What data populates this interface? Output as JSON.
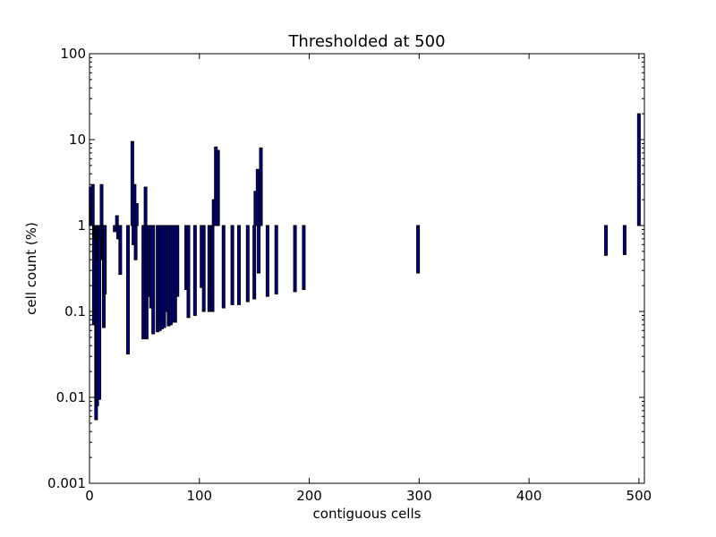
{
  "chart_data": {
    "type": "bar",
    "title": "Thresholded at 500",
    "xlabel": "contiguous cells",
    "ylabel": "cell count (%)",
    "xlim": [
      0,
      505
    ],
    "ylim": [
      0.001,
      100
    ],
    "yscale": "log",
    "baseline": 1,
    "bar_color": "#00008b",
    "edge_color": "#000000",
    "grid": false,
    "x_ticks": [
      0,
      100,
      200,
      300,
      400,
      500
    ],
    "x_tick_labels": [
      "0",
      "100",
      "200",
      "300",
      "400",
      "500"
    ],
    "y_ticks": [
      0.001,
      0.01,
      0.1,
      1,
      10,
      100
    ],
    "y_tick_labels": [
      "0.001",
      "0.01",
      "0.1",
      "1",
      "10",
      "100"
    ],
    "points": [
      {
        "x": 1,
        "y": 2.8
      },
      {
        "x": 2,
        "y": 1.8
      },
      {
        "x": 3,
        "y": 3.0
      },
      {
        "x": 4,
        "y": 0.07
      },
      {
        "x": 5,
        "y": 0.7
      },
      {
        "x": 6,
        "y": 0.0055
      },
      {
        "x": 7,
        "y": 0.008
      },
      {
        "x": 8,
        "y": 0.4
      },
      {
        "x": 9,
        "y": 0.0095
      },
      {
        "x": 10,
        "y": 0.7
      },
      {
        "x": 11,
        "y": 3.0
      },
      {
        "x": 12,
        "y": 0.4
      },
      {
        "x": 13,
        "y": 0.065
      },
      {
        "x": 14,
        "y": 0.16
      },
      {
        "x": 23,
        "y": 0.85
      },
      {
        "x": 25,
        "y": 1.3
      },
      {
        "x": 26,
        "y": 0.7
      },
      {
        "x": 28,
        "y": 0.27
      },
      {
        "x": 35,
        "y": 0.032
      },
      {
        "x": 39,
        "y": 9.5
      },
      {
        "x": 40,
        "y": 0.6
      },
      {
        "x": 41,
        "y": 3.0
      },
      {
        "x": 42,
        "y": 0.4
      },
      {
        "x": 43,
        "y": 1.8
      },
      {
        "x": 49,
        "y": 0.048
      },
      {
        "x": 51,
        "y": 2.8
      },
      {
        "x": 52,
        "y": 0.048
      },
      {
        "x": 54,
        "y": 0.15
      },
      {
        "x": 56,
        "y": 0.11
      },
      {
        "x": 58,
        "y": 0.055
      },
      {
        "x": 62,
        "y": 0.058
      },
      {
        "x": 64,
        "y": 0.06
      },
      {
        "x": 66,
        "y": 0.063
      },
      {
        "x": 68,
        "y": 0.065
      },
      {
        "x": 70,
        "y": 0.1
      },
      {
        "x": 72,
        "y": 0.068
      },
      {
        "x": 74,
        "y": 0.07
      },
      {
        "x": 76,
        "y": 0.075
      },
      {
        "x": 78,
        "y": 0.075
      },
      {
        "x": 80,
        "y": 0.15
      },
      {
        "x": 88,
        "y": 0.18
      },
      {
        "x": 90,
        "y": 0.085
      },
      {
        "x": 96,
        "y": 0.09
      },
      {
        "x": 102,
        "y": 0.19
      },
      {
        "x": 104,
        "y": 0.1
      },
      {
        "x": 109,
        "y": 0.1
      },
      {
        "x": 111,
        "y": 0.11
      },
      {
        "x": 112,
        "y": 0.1
      },
      {
        "x": 113,
        "y": 2.0
      },
      {
        "x": 115,
        "y": 8.2
      },
      {
        "x": 117,
        "y": 7.5
      },
      {
        "x": 122,
        "y": 0.11
      },
      {
        "x": 130,
        "y": 0.12
      },
      {
        "x": 136,
        "y": 0.12
      },
      {
        "x": 144,
        "y": 0.13
      },
      {
        "x": 150,
        "y": 0.14
      },
      {
        "x": 151,
        "y": 2.5
      },
      {
        "x": 153,
        "y": 4.5
      },
      {
        "x": 154,
        "y": 0.28
      },
      {
        "x": 156,
        "y": 8.0
      },
      {
        "x": 162,
        "y": 0.15
      },
      {
        "x": 170,
        "y": 0.16
      },
      {
        "x": 187,
        "y": 0.17
      },
      {
        "x": 195,
        "y": 0.18
      },
      {
        "x": 299,
        "y": 0.28
      },
      {
        "x": 470,
        "y": 0.45
      },
      {
        "x": 487,
        "y": 0.46
      },
      {
        "x": 500,
        "y": 20
      }
    ]
  }
}
